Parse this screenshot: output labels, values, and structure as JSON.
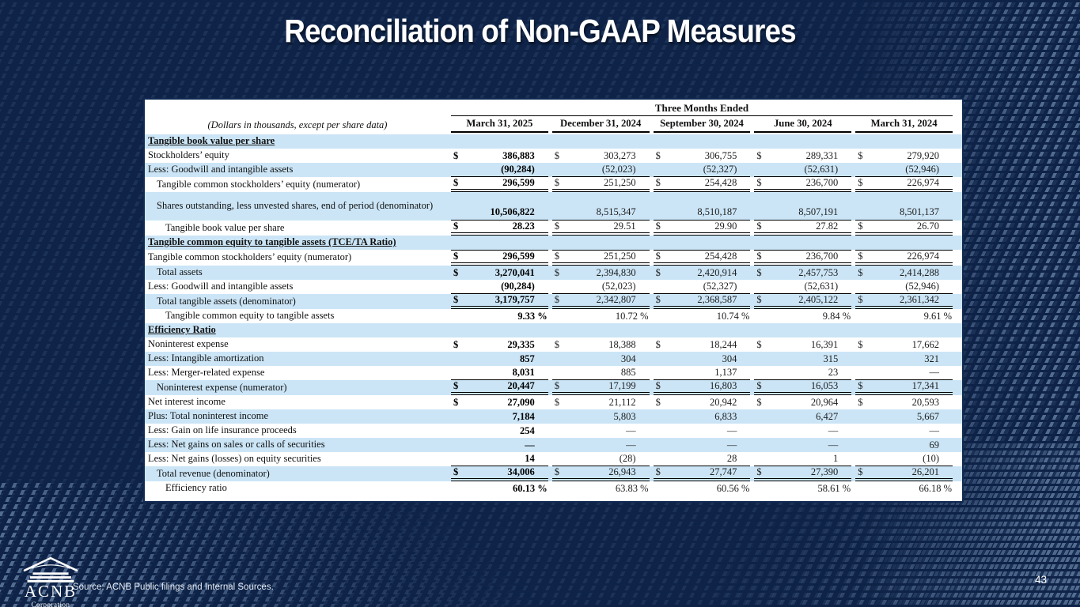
{
  "slide": {
    "title": "Reconciliation of Non-GAAP Measures",
    "page_number": "43",
    "source_note": "Source:  ACNB Public filings and Internal Sources.",
    "logo_text": "ACNB",
    "logo_subtext": "Corporation"
  },
  "colors": {
    "background": "#0E2347",
    "row_shade": "#CBE5F6",
    "pattern_dash": "#9AB8DE"
  },
  "table": {
    "span_header": "Three Months Ended",
    "units_note": "(Dollars in thousands, except per share data)",
    "currency_symbol": "$",
    "columns": [
      "March 31, 2025",
      "December 31, 2024",
      "September 30, 2024",
      "June 30, 2024",
      "March 31, 2024"
    ],
    "rows": [
      {
        "type": "section",
        "label": "Tangible book value per share"
      },
      {
        "type": "data",
        "label": "Stockholders’ equity",
        "indent": 0,
        "dollar": true,
        "values": [
          "386,883",
          "303,273",
          "306,755",
          "289,331",
          "279,920"
        ],
        "rule": "none"
      },
      {
        "type": "data",
        "label": "Less: Goodwill and intangible assets",
        "indent": 0,
        "dollar": false,
        "values": [
          "(90,284)",
          "(52,023)",
          "(52,327)",
          "(52,631)",
          "(52,946)"
        ],
        "rule": "single"
      },
      {
        "type": "data",
        "label": "Tangible common stockholders’ equity (numerator)",
        "indent": 1,
        "dollar": true,
        "values": [
          "296,599",
          "251,250",
          "254,428",
          "236,700",
          "226,974"
        ],
        "rule": "double"
      },
      {
        "type": "data",
        "label": "Shares outstanding, less unvested shares, end of period (denominator)",
        "indent": 1,
        "dollar": false,
        "tall": true,
        "values": [
          "10,506,822",
          "8,515,347",
          "8,510,187",
          "8,507,191",
          "8,501,137"
        ],
        "rule": "single"
      },
      {
        "type": "data",
        "label": "Tangible book value per share",
        "indent": 2,
        "dollar": true,
        "values": [
          "28.23",
          "29.51",
          "29.90",
          "27.82",
          "26.70"
        ],
        "rule": "double"
      },
      {
        "type": "section",
        "label": "Tangible common equity to tangible assets (TCE/TA Ratio)"
      },
      {
        "type": "data",
        "label": "Tangible common stockholders’ equity (numerator)",
        "indent": 0,
        "dollar": true,
        "topline": true,
        "values": [
          "296,599",
          "251,250",
          "254,428",
          "236,700",
          "226,974"
        ],
        "rule": "double"
      },
      {
        "type": "data",
        "label": "Total assets",
        "indent": 1,
        "dollar": true,
        "values": [
          "3,270,041",
          "2,394,830",
          "2,420,914",
          "2,457,753",
          "2,414,288"
        ],
        "rule": "none"
      },
      {
        "type": "data",
        "label": "Less: Goodwill and intangible assets",
        "indent": 0,
        "dollar": false,
        "values": [
          "(90,284)",
          "(52,023)",
          "(52,327)",
          "(52,631)",
          "(52,946)"
        ],
        "rule": "single"
      },
      {
        "type": "data",
        "label": "Total tangible assets (denominator)",
        "indent": 1,
        "dollar": true,
        "values": [
          "3,179,757",
          "2,342,807",
          "2,368,587",
          "2,405,122",
          "2,361,342"
        ],
        "rule": "double"
      },
      {
        "type": "data",
        "label": "Tangible common equity to tangible assets",
        "indent": 2,
        "dollar": false,
        "percent": true,
        "values": [
          "9.33 %",
          "10.72 %",
          "10.74 %",
          "9.84 %",
          "9.61 %"
        ],
        "rule": "none"
      },
      {
        "type": "section",
        "label": "Efficiency Ratio"
      },
      {
        "type": "data",
        "label": "Noninterest expense",
        "indent": 0,
        "dollar": true,
        "values": [
          "29,335",
          "18,388",
          "18,244",
          "16,391",
          "17,662"
        ],
        "rule": "none"
      },
      {
        "type": "data",
        "label": "Less: Intangible amortization",
        "indent": 0,
        "dollar": false,
        "values": [
          "857",
          "304",
          "304",
          "315",
          "321"
        ],
        "rule": "none"
      },
      {
        "type": "data",
        "label": "Less: Merger-related expense",
        "indent": 0,
        "dollar": false,
        "values": [
          "8,031",
          "885",
          "1,137",
          "23",
          "—"
        ],
        "rule": "single"
      },
      {
        "type": "data",
        "label": "Noninterest expense (numerator)",
        "indent": 1,
        "dollar": true,
        "values": [
          "20,447",
          "17,199",
          "16,803",
          "16,053",
          "17,341"
        ],
        "rule": "double"
      },
      {
        "type": "data",
        "label": "Net interest income",
        "indent": 0,
        "dollar": true,
        "values": [
          "27,090",
          "21,112",
          "20,942",
          "20,964",
          "20,593"
        ],
        "rule": "none"
      },
      {
        "type": "data",
        "label": "Plus: Total noninterest income",
        "indent": 0,
        "dollar": false,
        "values": [
          "7,184",
          "5,803",
          "6,833",
          "6,427",
          "5,667"
        ],
        "rule": "none"
      },
      {
        "type": "data",
        "label": "Less: Gain on life insurance proceeds",
        "indent": 0,
        "dollar": false,
        "values": [
          "254",
          "—",
          "—",
          "—",
          "—"
        ],
        "rule": "none"
      },
      {
        "type": "data",
        "label": "Less: Net gains on sales or calls of securities",
        "indent": 0,
        "dollar": false,
        "values": [
          "—",
          "—",
          "—",
          "—",
          "69"
        ],
        "rule": "none"
      },
      {
        "type": "data",
        "label": "Less: Net gains (losses) on equity securities",
        "indent": 0,
        "dollar": false,
        "values": [
          "14",
          "(28)",
          "28",
          "1",
          "(10)"
        ],
        "rule": "single"
      },
      {
        "type": "data",
        "label": "Total revenue (denominator)",
        "indent": 1,
        "dollar": true,
        "values": [
          "34,006",
          "26,943",
          "27,747",
          "27,390",
          "26,201"
        ],
        "rule": "double"
      },
      {
        "type": "data",
        "label": "Efficiency ratio",
        "indent": 2,
        "dollar": false,
        "percent": true,
        "values": [
          "60.13 %",
          "63.83 %",
          "60.56 %",
          "58.61 %",
          "66.18 %"
        ],
        "rule": "none"
      }
    ]
  }
}
